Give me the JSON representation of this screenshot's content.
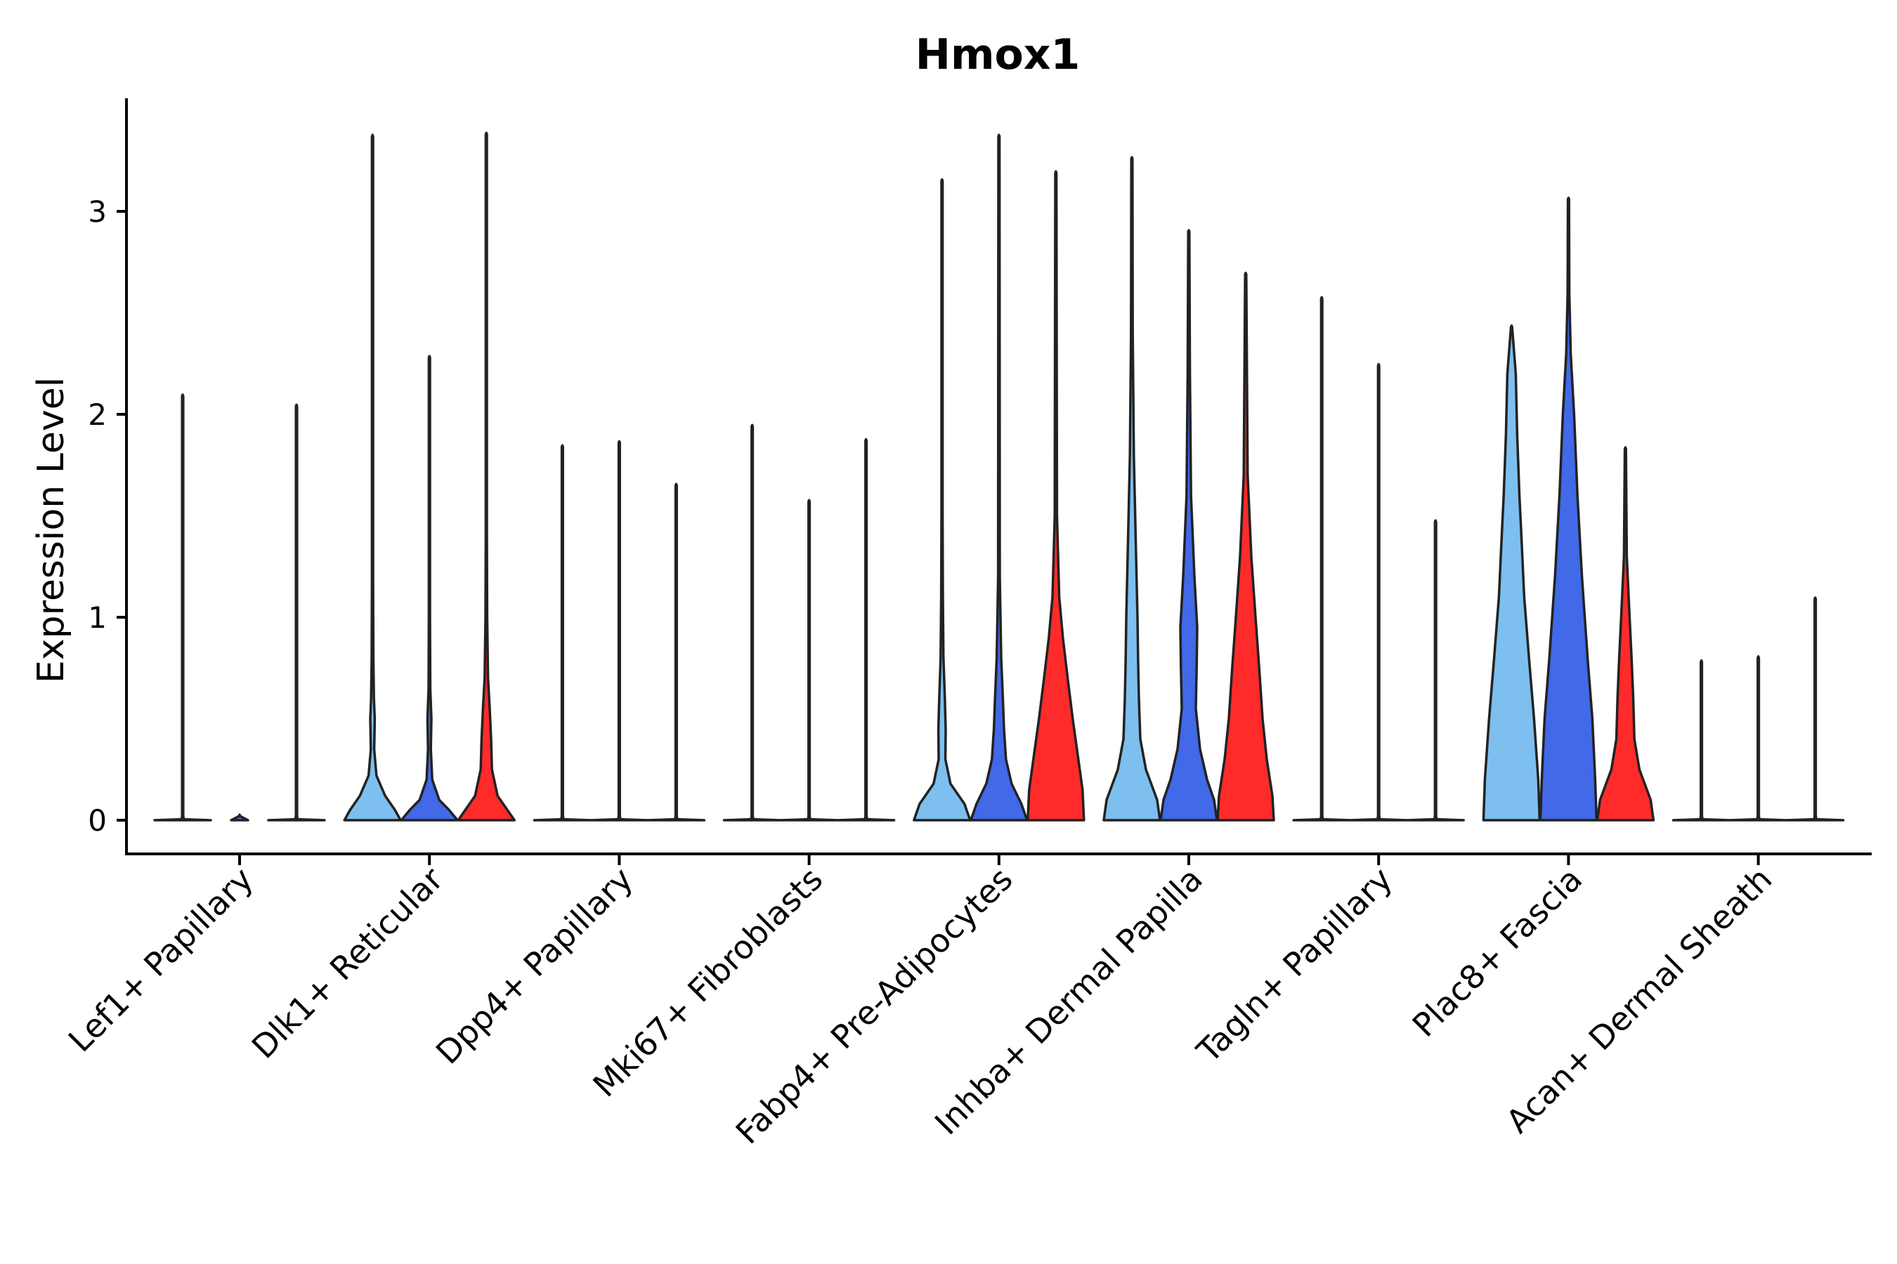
{
  "chart_data": {
    "type": "violin",
    "title": "Hmox1",
    "xlabel": "",
    "ylabel": "Expression Level",
    "ylim": [
      -0.17,
      3.55
    ],
    "yticks": [
      0,
      1,
      2,
      3
    ],
    "legend": "none",
    "colors": [
      "#7dbfee",
      "#4169e8",
      "#ff2b2b"
    ],
    "categories": [
      "Lef1+ Papillary",
      "Dlk1+ Reticular",
      "Dpp4+ Papillary",
      "Mki67+ Fibroblasts",
      "Fabp4+ Pre-Adipocytes",
      "Inhba+ Dermal Papilla",
      "Tagln+ Papillary",
      "Plac8+ Fascia",
      "Acan+ Dermal Sheath"
    ],
    "series_count": 3,
    "max_values": [
      [
        2.09,
        0.0,
        2.04
      ],
      [
        3.37,
        2.28,
        3.38
      ],
      [
        1.84,
        1.86,
        1.65
      ],
      [
        1.94,
        1.57,
        1.87
      ],
      [
        3.15,
        3.37,
        3.19
      ],
      [
        3.26,
        2.9,
        2.69
      ],
      [
        2.57,
        2.24,
        1.47
      ],
      [
        2.43,
        3.06,
        1.83
      ],
      [
        0.78,
        0.8,
        1.09
      ]
    ],
    "densities": [
      [
        [
          [
            0,
            1
          ],
          [
            0.005,
            0.04
          ],
          [
            0.02,
            0.02
          ],
          [
            0.05,
            0.02
          ],
          [
            2.09,
            0.02
          ]
        ],
        [
          [
            0,
            0.3
          ],
          [
            0.02,
            0.02
          ]
        ],
        [
          [
            0,
            1
          ],
          [
            0.005,
            0.04
          ],
          [
            0.02,
            0.02
          ],
          [
            0.05,
            0.02
          ],
          [
            2.04,
            0.02
          ]
        ]
      ],
      [
        [
          [
            0,
            1
          ],
          [
            0.05,
            0.8
          ],
          [
            0.12,
            0.45
          ],
          [
            0.22,
            0.14
          ],
          [
            0.35,
            0.06
          ],
          [
            0.5,
            0.08
          ],
          [
            0.6,
            0.05
          ],
          [
            0.8,
            0.03
          ],
          [
            1.2,
            0.02
          ],
          [
            3.37,
            0.02
          ]
        ],
        [
          [
            0,
            1
          ],
          [
            0.05,
            0.7
          ],
          [
            0.1,
            0.35
          ],
          [
            0.2,
            0.1
          ],
          [
            0.35,
            0.05
          ],
          [
            0.5,
            0.07
          ],
          [
            0.65,
            0.03
          ],
          [
            1.0,
            0.02
          ],
          [
            2.28,
            0.02
          ]
        ],
        [
          [
            0,
            1
          ],
          [
            0.05,
            0.75
          ],
          [
            0.12,
            0.4
          ],
          [
            0.25,
            0.2
          ],
          [
            0.4,
            0.17
          ],
          [
            0.55,
            0.12
          ],
          [
            0.7,
            0.06
          ],
          [
            1.0,
            0.03
          ],
          [
            1.4,
            0.02
          ],
          [
            3.38,
            0.02
          ]
        ]
      ],
      [
        [
          [
            0,
            1
          ],
          [
            0.005,
            0.04
          ],
          [
            0.02,
            0.02
          ],
          [
            0.05,
            0.02
          ],
          [
            1.84,
            0.02
          ]
        ],
        [
          [
            0,
            1
          ],
          [
            0.005,
            0.04
          ],
          [
            0.02,
            0.02
          ],
          [
            0.05,
            0.02
          ],
          [
            1.86,
            0.02
          ]
        ],
        [
          [
            0,
            1
          ],
          [
            0.005,
            0.04
          ],
          [
            0.02,
            0.02
          ],
          [
            0.05,
            0.02
          ],
          [
            1.65,
            0.02
          ]
        ]
      ],
      [
        [
          [
            0,
            1
          ],
          [
            0.005,
            0.04
          ],
          [
            0.02,
            0.02
          ],
          [
            0.05,
            0.02
          ],
          [
            1.94,
            0.02
          ]
        ],
        [
          [
            0,
            1
          ],
          [
            0.005,
            0.04
          ],
          [
            0.02,
            0.02
          ],
          [
            0.05,
            0.02
          ],
          [
            1.57,
            0.02
          ]
        ],
        [
          [
            0,
            1
          ],
          [
            0.005,
            0.04
          ],
          [
            0.02,
            0.02
          ],
          [
            0.05,
            0.02
          ],
          [
            1.87,
            0.02
          ]
        ]
      ],
      [
        [
          [
            0,
            1
          ],
          [
            0.08,
            0.8
          ],
          [
            0.18,
            0.3
          ],
          [
            0.3,
            0.12
          ],
          [
            0.45,
            0.13
          ],
          [
            0.6,
            0.1
          ],
          [
            0.8,
            0.05
          ],
          [
            1.1,
            0.03
          ],
          [
            1.5,
            0.02
          ],
          [
            3.15,
            0.02
          ]
        ],
        [
          [
            0,
            1
          ],
          [
            0.08,
            0.8
          ],
          [
            0.18,
            0.45
          ],
          [
            0.3,
            0.25
          ],
          [
            0.45,
            0.18
          ],
          [
            0.6,
            0.14
          ],
          [
            0.8,
            0.08
          ],
          [
            1.2,
            0.03
          ],
          [
            3.37,
            0.02
          ]
        ],
        [
          [
            0,
            1
          ],
          [
            0.15,
            0.95
          ],
          [
            0.3,
            0.8
          ],
          [
            0.5,
            0.6
          ],
          [
            0.7,
            0.42
          ],
          [
            0.9,
            0.25
          ],
          [
            1.1,
            0.12
          ],
          [
            1.5,
            0.04
          ],
          [
            3.19,
            0.02
          ]
        ]
      ],
      [
        [
          [
            0,
            1
          ],
          [
            0.1,
            0.9
          ],
          [
            0.25,
            0.5
          ],
          [
            0.4,
            0.3
          ],
          [
            0.6,
            0.25
          ],
          [
            0.8,
            0.22
          ],
          [
            1.0,
            0.2
          ],
          [
            1.3,
            0.15
          ],
          [
            1.8,
            0.07
          ],
          [
            2.4,
            0.03
          ],
          [
            3.26,
            0.02
          ]
        ],
        [
          [
            0,
            1
          ],
          [
            0.1,
            0.9
          ],
          [
            0.2,
            0.65
          ],
          [
            0.35,
            0.4
          ],
          [
            0.55,
            0.25
          ],
          [
            0.75,
            0.28
          ],
          [
            0.95,
            0.3
          ],
          [
            1.2,
            0.2
          ],
          [
            1.6,
            0.08
          ],
          [
            2.2,
            0.04
          ],
          [
            2.9,
            0.02
          ]
        ],
        [
          [
            0,
            1
          ],
          [
            0.12,
            0.95
          ],
          [
            0.3,
            0.75
          ],
          [
            0.5,
            0.6
          ],
          [
            0.75,
            0.48
          ],
          [
            1.0,
            0.35
          ],
          [
            1.3,
            0.2
          ],
          [
            1.7,
            0.07
          ],
          [
            2.69,
            0.02
          ]
        ]
      ],
      [
        [
          [
            0,
            1
          ],
          [
            0.005,
            0.04
          ],
          [
            0.02,
            0.02
          ],
          [
            0.05,
            0.02
          ],
          [
            2.57,
            0.02
          ]
        ],
        [
          [
            0,
            1
          ],
          [
            0.005,
            0.04
          ],
          [
            0.02,
            0.02
          ],
          [
            0.05,
            0.02
          ],
          [
            2.24,
            0.02
          ]
        ],
        [
          [
            0,
            1
          ],
          [
            0.005,
            0.04
          ],
          [
            0.02,
            0.02
          ],
          [
            0.05,
            0.02
          ],
          [
            1.47,
            0.02
          ]
        ]
      ],
      [
        [
          [
            0,
            1
          ],
          [
            0.2,
            0.95
          ],
          [
            0.5,
            0.8
          ],
          [
            0.8,
            0.62
          ],
          [
            1.1,
            0.45
          ],
          [
            1.4,
            0.35
          ],
          [
            1.6,
            0.28
          ],
          [
            1.9,
            0.2
          ],
          [
            2.2,
            0.15
          ],
          [
            2.43,
            0.02
          ]
        ],
        [
          [
            0,
            1
          ],
          [
            0.2,
            0.95
          ],
          [
            0.5,
            0.85
          ],
          [
            0.8,
            0.68
          ],
          [
            1.2,
            0.48
          ],
          [
            1.6,
            0.32
          ],
          [
            2.0,
            0.2
          ],
          [
            2.3,
            0.08
          ],
          [
            2.6,
            0.03
          ],
          [
            3.06,
            0.02
          ]
        ],
        [
          [
            0,
            1
          ],
          [
            0.1,
            0.9
          ],
          [
            0.25,
            0.5
          ],
          [
            0.4,
            0.32
          ],
          [
            0.6,
            0.28
          ],
          [
            0.8,
            0.22
          ],
          [
            1.0,
            0.15
          ],
          [
            1.3,
            0.05
          ],
          [
            1.83,
            0.02
          ]
        ]
      ],
      [
        [
          [
            0,
            1
          ],
          [
            0.005,
            0.04
          ],
          [
            0.02,
            0.02
          ],
          [
            0.05,
            0.02
          ],
          [
            0.78,
            0.02
          ]
        ],
        [
          [
            0,
            1
          ],
          [
            0.005,
            0.04
          ],
          [
            0.02,
            0.02
          ],
          [
            0.05,
            0.02
          ],
          [
            0.8,
            0.02
          ]
        ],
        [
          [
            0,
            1
          ],
          [
            0.005,
            0.04
          ],
          [
            0.02,
            0.02
          ],
          [
            0.05,
            0.02
          ],
          [
            1.09,
            0.02
          ]
        ]
      ]
    ]
  }
}
